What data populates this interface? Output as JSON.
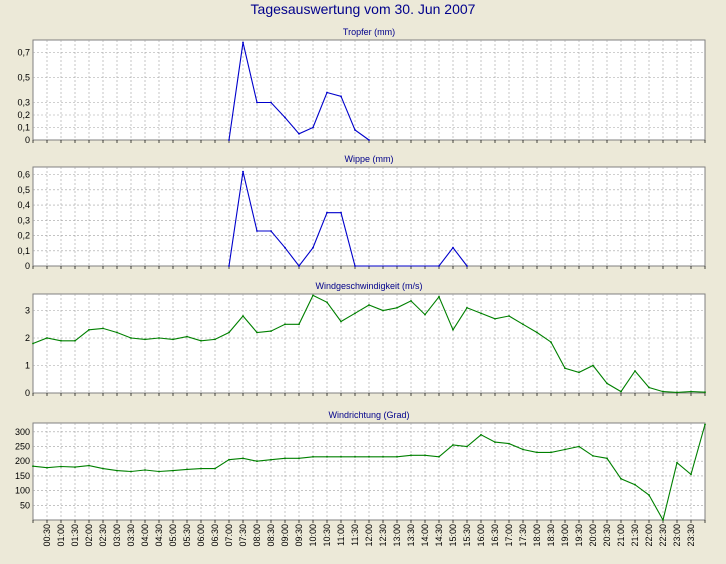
{
  "title": "Tagesauswertung vom 30. Jun 2007",
  "colors": {
    "background": "#ece9d8",
    "plot_bg": "#ffffff",
    "grid": "#a0a0a0",
    "title": "#00008b",
    "blue": "#0000cc",
    "green": "#008000"
  },
  "chart_data": [
    {
      "type": "line",
      "title": "Tropfer (mm)",
      "color": "#0000cc",
      "ylim": [
        0,
        0.8
      ],
      "yticks": [
        0,
        0.1,
        0.2,
        0.3,
        0.5,
        0.7
      ],
      "ytick_labels": [
        "0",
        "0,1",
        "0,2",
        "0,3",
        "0,5",
        "0,7"
      ],
      "grid": true,
      "x_slot": [
        14,
        15,
        16,
        17,
        18,
        19,
        20,
        21,
        22,
        23,
        24,
        25,
        26
      ],
      "values": [
        0,
        0.78,
        0.3,
        0.3,
        0.18,
        0.05,
        0.1,
        0.38,
        0.35,
        0.08,
        0,
        null,
        null
      ]
    },
    {
      "type": "line",
      "title": "Wippe (mm)",
      "color": "#0000cc",
      "ylim": [
        0,
        0.65
      ],
      "yticks": [
        0,
        0.1,
        0.2,
        0.3,
        0.4,
        0.5,
        0.6
      ],
      "ytick_labels": [
        "0",
        "0,1",
        "0,2",
        "0,3",
        "0,4",
        "0,5",
        "0,6"
      ],
      "grid": true,
      "x_slot": [
        14,
        15,
        16,
        17,
        18,
        19,
        20,
        21,
        22,
        23,
        29,
        30,
        31
      ],
      "values": [
        0,
        0.62,
        0.23,
        0.23,
        0.12,
        0,
        0.12,
        0.35,
        0.35,
        0,
        0,
        0.12,
        0
      ]
    },
    {
      "type": "line",
      "title": "Windgeschwindigkeit (m/s)",
      "color": "#008000",
      "ylim": [
        0,
        3.6
      ],
      "yticks": [
        0,
        1,
        2,
        3
      ],
      "ytick_labels": [
        "0",
        "1",
        "2",
        "3"
      ],
      "grid": true,
      "values": [
        1.8,
        2.0,
        1.9,
        1.9,
        2.3,
        2.35,
        2.2,
        2.0,
        1.95,
        2.0,
        1.95,
        2.05,
        1.9,
        1.95,
        2.2,
        2.8,
        2.2,
        2.25,
        2.5,
        2.5,
        3.55,
        3.3,
        2.6,
        2.9,
        3.2,
        3.0,
        3.1,
        3.35,
        2.85,
        3.5,
        2.3,
        3.1,
        2.9,
        2.7,
        2.8,
        2.5,
        2.2,
        1.85,
        0.9,
        0.75,
        1.0,
        0.35,
        0.05,
        0.8,
        0.2,
        0.05,
        0.02,
        0.05,
        0.03
      ]
    },
    {
      "type": "line",
      "title": "Windrichtung (Grad)",
      "color": "#008000",
      "ylim": [
        0,
        330
      ],
      "yticks": [
        50,
        100,
        150,
        200,
        250,
        300
      ],
      "ytick_labels": [
        "50",
        "100",
        "150",
        "200",
        "250",
        "300"
      ],
      "grid": true,
      "values": [
        183,
        178,
        182,
        180,
        185,
        175,
        168,
        165,
        170,
        165,
        168,
        172,
        175,
        175,
        205,
        210,
        200,
        205,
        210,
        210,
        215,
        215,
        215,
        215,
        215,
        215,
        215,
        220,
        220,
        215,
        255,
        250,
        290,
        265,
        260,
        240,
        230,
        230,
        240,
        250,
        218,
        210,
        140,
        120,
        85,
        0,
        195,
        155,
        325
      ]
    }
  ],
  "x_labels": [
    "00:30",
    "01:00",
    "01:30",
    "02:00",
    "02:30",
    "03:00",
    "03:30",
    "04:00",
    "04:30",
    "05:00",
    "05:30",
    "06:00",
    "06:30",
    "07:00",
    "07:30",
    "08:00",
    "08:30",
    "09:00",
    "09:30",
    "10:00",
    "10:30",
    "11:00",
    "11:30",
    "12:00",
    "12:30",
    "13:00",
    "13:30",
    "14:00",
    "14:30",
    "15:00",
    "15:30",
    "16:00",
    "16:30",
    "17:00",
    "17:30",
    "18:00",
    "18:30",
    "19:00",
    "19:30",
    "20:00",
    "20:30",
    "21:00",
    "21:30",
    "22:00",
    "22:30",
    "23:00",
    "23:30"
  ]
}
